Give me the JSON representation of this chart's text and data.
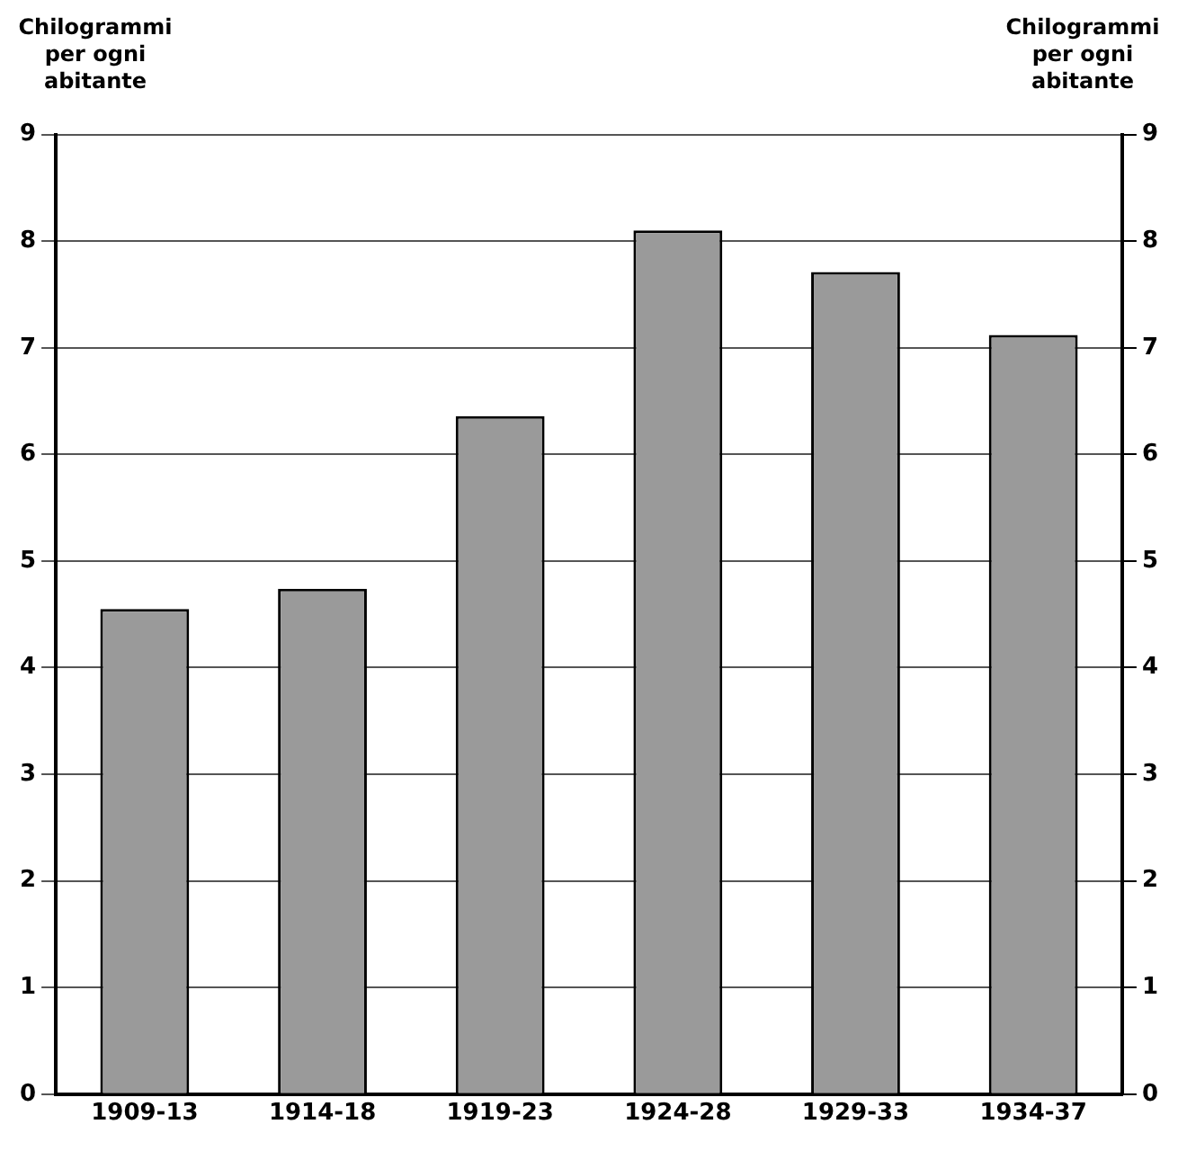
{
  "chart_data": {
    "type": "bar",
    "ylabel": "Chilogrammi per ogni abitante",
    "y2label": "Chilogrammi per ogni abitante",
    "categories": [
      "1909-13",
      "1914-18",
      "1919-23",
      "1924-28",
      "1929-33",
      "1934-37"
    ],
    "values": [
      4.55,
      4.74,
      6.36,
      8.1,
      7.71,
      7.12
    ],
    "color": "#9a9a9a",
    "ylim": [
      0,
      9
    ],
    "yticks": [
      0,
      1,
      2,
      3,
      4,
      5,
      6,
      7,
      8,
      9
    ],
    "y2lim": [
      0,
      9
    ],
    "y2ticks": [
      0,
      1,
      2,
      3,
      4,
      5,
      6,
      7,
      8,
      9
    ],
    "grid": "y",
    "legend": false
  }
}
